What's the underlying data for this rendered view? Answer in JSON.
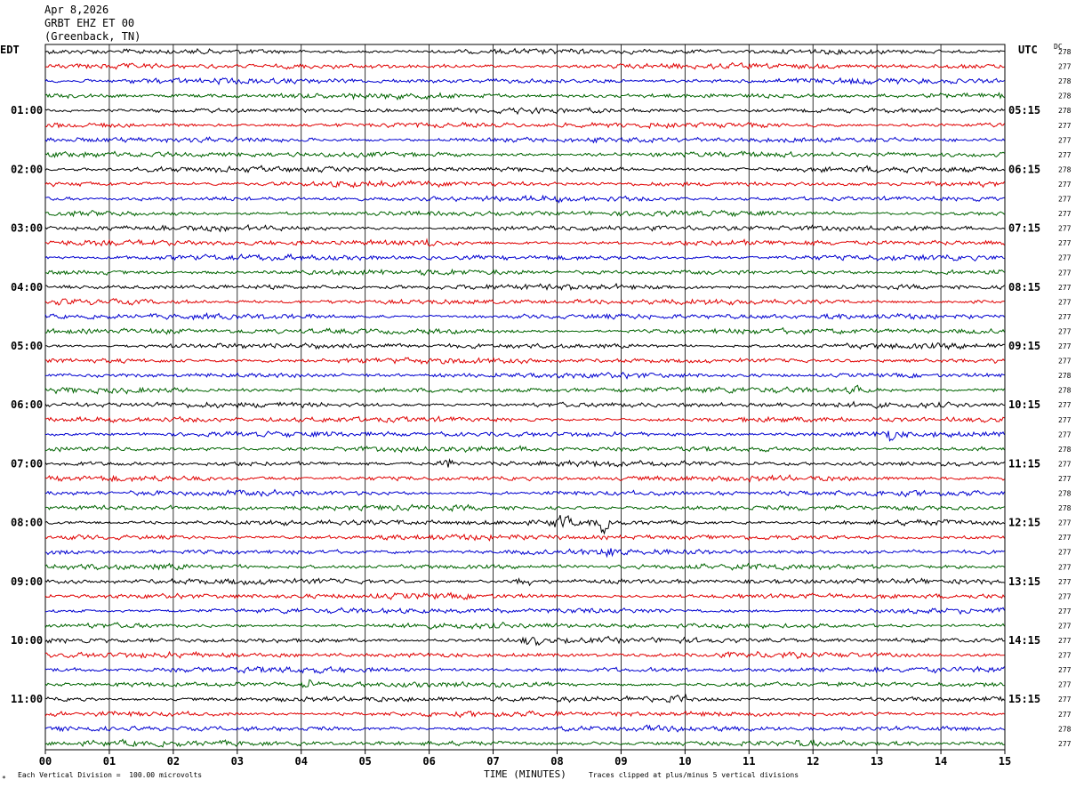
{
  "header": {
    "date": "Apr 8,2026",
    "station": "GRBT EHZ ET 00",
    "location": "(Greenback, TN)"
  },
  "left_tz": "EDT",
  "right_tz": "UTC",
  "dc_label": "DC",
  "footer": {
    "scale_note": "Each Vertical Division =  100.00 microvolts",
    "clip_note": "Traces clipped at plus/minus 5 vertical divisions"
  },
  "chart_data": {
    "type": "line",
    "title": "",
    "xlabel": "TIME (MINUTES)",
    "ylabel": "",
    "xlim": [
      0,
      15
    ],
    "x_ticks": [
      "00",
      "01",
      "02",
      "03",
      "04",
      "05",
      "06",
      "07",
      "08",
      "09",
      "10",
      "11",
      "12",
      "13",
      "14",
      "15"
    ],
    "trace_count": 48,
    "trace_colors": [
      "#000000",
      "#e00000",
      "#0000d0",
      "#006400"
    ],
    "left_hour_labels": [
      "01:00",
      "02:00",
      "03:00",
      "04:00",
      "05:00",
      "06:00",
      "07:00",
      "08:00",
      "09:00",
      "10:00",
      "11:00"
    ],
    "right_hour_labels": [
      "05:15",
      "06:15",
      "07:15",
      "08:15",
      "09:15",
      "10:15",
      "11:15",
      "12:15",
      "13:15",
      "14:15",
      "15:15"
    ],
    "dc_offsets": [
      278,
      277,
      278,
      278,
      278,
      277,
      277,
      277,
      278,
      277,
      277,
      277,
      277,
      277,
      277,
      277,
      277,
      277,
      277,
      277,
      277,
      277,
      278,
      278,
      277,
      277,
      277,
      278,
      277,
      277,
      278,
      278,
      277,
      277,
      277,
      277,
      277,
      277,
      277,
      277,
      277,
      277,
      277,
      277,
      277,
      277,
      278,
      277
    ],
    "events": [
      {
        "trace": 32,
        "minute": 8.05,
        "amp": 14
      },
      {
        "trace": 32,
        "minute": 8.7,
        "amp": 11
      },
      {
        "trace": 34,
        "minute": 8.9,
        "amp": 10
      },
      {
        "trace": 36,
        "minute": 7.5,
        "amp": 7
      },
      {
        "trace": 40,
        "minute": 7.6,
        "amp": 8
      },
      {
        "trace": 43,
        "minute": 4.1,
        "amp": 6
      },
      {
        "trace": 44,
        "minute": 9.9,
        "amp": 7
      },
      {
        "trace": 23,
        "minute": 12.7,
        "amp": 6
      },
      {
        "trace": 26,
        "minute": 13.2,
        "amp": 6
      },
      {
        "trace": 13,
        "minute": 6.0,
        "amp": 6
      },
      {
        "trace": 28,
        "minute": 6.3,
        "amp": 6
      }
    ]
  }
}
